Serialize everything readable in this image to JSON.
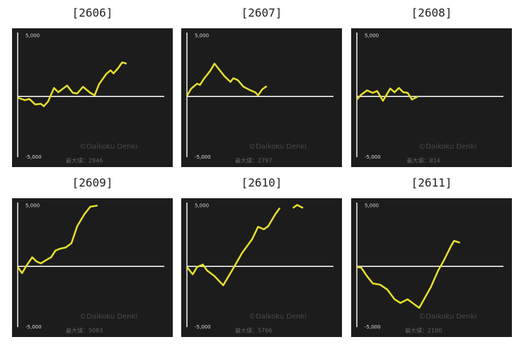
{
  "chart_data": [
    {
      "type": "line",
      "title": "[2606]",
      "watermark": "©Daikoku Denki",
      "max_label": "最大値：2946",
      "color": "#e6df2e",
      "x": [
        0,
        5,
        8,
        12,
        16,
        18,
        21,
        25,
        28,
        34,
        38,
        41,
        45,
        50,
        53,
        56,
        61,
        64,
        66,
        69,
        72,
        75
      ],
      "values": [
        -100,
        -300,
        -200,
        -650,
        -600,
        -800,
        -400,
        700,
        350,
        900,
        300,
        250,
        800,
        300,
        100,
        1000,
        1850,
        2150,
        1900,
        2300,
        2800,
        2700
      ],
      "xlim": [
        0,
        100
      ],
      "ylim": [
        -5800,
        5600
      ],
      "baseline": 0,
      "yticks": [
        {
          "value": 5000,
          "label": "5,000"
        },
        {
          "value": -5000,
          "label": "-5,000"
        }
      ]
    },
    {
      "type": "line",
      "title": "[2607]",
      "watermark": "©Daikoku Denki",
      "max_label": "最大値：2797",
      "color": "#e6df2e",
      "x": [
        0,
        3,
        7,
        9,
        12,
        16,
        19,
        22,
        26,
        30,
        32,
        35,
        39,
        43,
        47,
        49,
        52,
        55
      ],
      "values": [
        50,
        650,
        1050,
        950,
        1500,
        2100,
        2700,
        2250,
        1650,
        1200,
        1500,
        1350,
        800,
        550,
        350,
        100,
        600,
        850
      ],
      "xlim": [
        0,
        100
      ],
      "ylim": [
        -5800,
        5600
      ],
      "baseline": 0,
      "yticks": [
        {
          "value": 5000,
          "label": "5,000"
        },
        {
          "value": -5000,
          "label": "-5,000"
        }
      ]
    },
    {
      "type": "line",
      "title": "[2608]",
      "watermark": "©Daikoku Denki",
      "max_label": "最大値：814",
      "color": "#e6df2e",
      "x": [
        0,
        3,
        7,
        11,
        14,
        18,
        21,
        23,
        26,
        29,
        32,
        35,
        38,
        42
      ],
      "values": [
        -250,
        150,
        500,
        300,
        450,
        -350,
        250,
        650,
        350,
        700,
        350,
        300,
        -250,
        0
      ],
      "xlim": [
        0,
        100
      ],
      "ylim": [
        -5800,
        5600
      ],
      "baseline": 0,
      "yticks": [
        {
          "value": 5000,
          "label": "5,000"
        },
        {
          "value": -5000,
          "label": "-5,000"
        }
      ]
    },
    {
      "type": "line",
      "title": "[2609]",
      "watermark": "©Daikoku Denki",
      "max_label": "最大値：5083",
      "color": "#e6df2e",
      "x": [
        0,
        3,
        6,
        10,
        13,
        16,
        20,
        23,
        26,
        29,
        33,
        37,
        41,
        46,
        50,
        55
      ],
      "values": [
        -50,
        -550,
        50,
        750,
        400,
        250,
        550,
        750,
        1300,
        1450,
        1550,
        1900,
        3300,
        4300,
        4900,
        5000
      ],
      "xlim": [
        0,
        100
      ],
      "ylim": [
        -5800,
        5600
      ],
      "baseline": 0,
      "yticks": [
        {
          "value": 5000,
          "label": "5,000"
        },
        {
          "value": -5000,
          "label": "-5,000"
        }
      ]
    },
    {
      "type": "line",
      "title": "[2610]",
      "watermark": "©Daikoku Denki",
      "max_label": "最大値：5766",
      "color": "#e6df2e",
      "x": [
        0,
        4,
        7,
        11,
        14,
        19,
        25,
        31,
        38,
        45,
        49,
        53,
        56,
        61,
        64,
        68,
        73,
        76,
        80
      ],
      "values": [
        -50,
        -650,
        -50,
        150,
        -350,
        -800,
        -1550,
        -350,
        1100,
        2250,
        3250,
        3050,
        3300,
        4300,
        4800,
        null,
        4800,
        5050,
        4800
      ],
      "xlim": [
        0,
        100
      ],
      "ylim": [
        -5800,
        5600
      ],
      "baseline": 0,
      "yticks": [
        {
          "value": 5000,
          "label": "5,000"
        },
        {
          "value": -5000,
          "label": "-5,000"
        }
      ]
    },
    {
      "type": "line",
      "title": "[2611]",
      "watermark": "©Daikoku Denki",
      "max_label": "最大値：2100",
      "color": "#e6df2e",
      "x": [
        0,
        3,
        7,
        11,
        16,
        21,
        26,
        30,
        35,
        40,
        43,
        47,
        51,
        56,
        60,
        65,
        67,
        71
      ],
      "values": [
        -50,
        -100,
        -800,
        -1400,
        -1500,
        -1900,
        -2700,
        -3000,
        -2700,
        -3150,
        -3400,
        -2550,
        -1700,
        -350,
        500,
        1700,
        2100,
        1950
      ],
      "xlim": [
        0,
        100
      ],
      "ylim": [
        -5800,
        5600
      ],
      "baseline": 0,
      "yticks": [
        {
          "value": 5000,
          "label": "5,000"
        },
        {
          "value": -5000,
          "label": "-5,000"
        }
      ]
    }
  ]
}
